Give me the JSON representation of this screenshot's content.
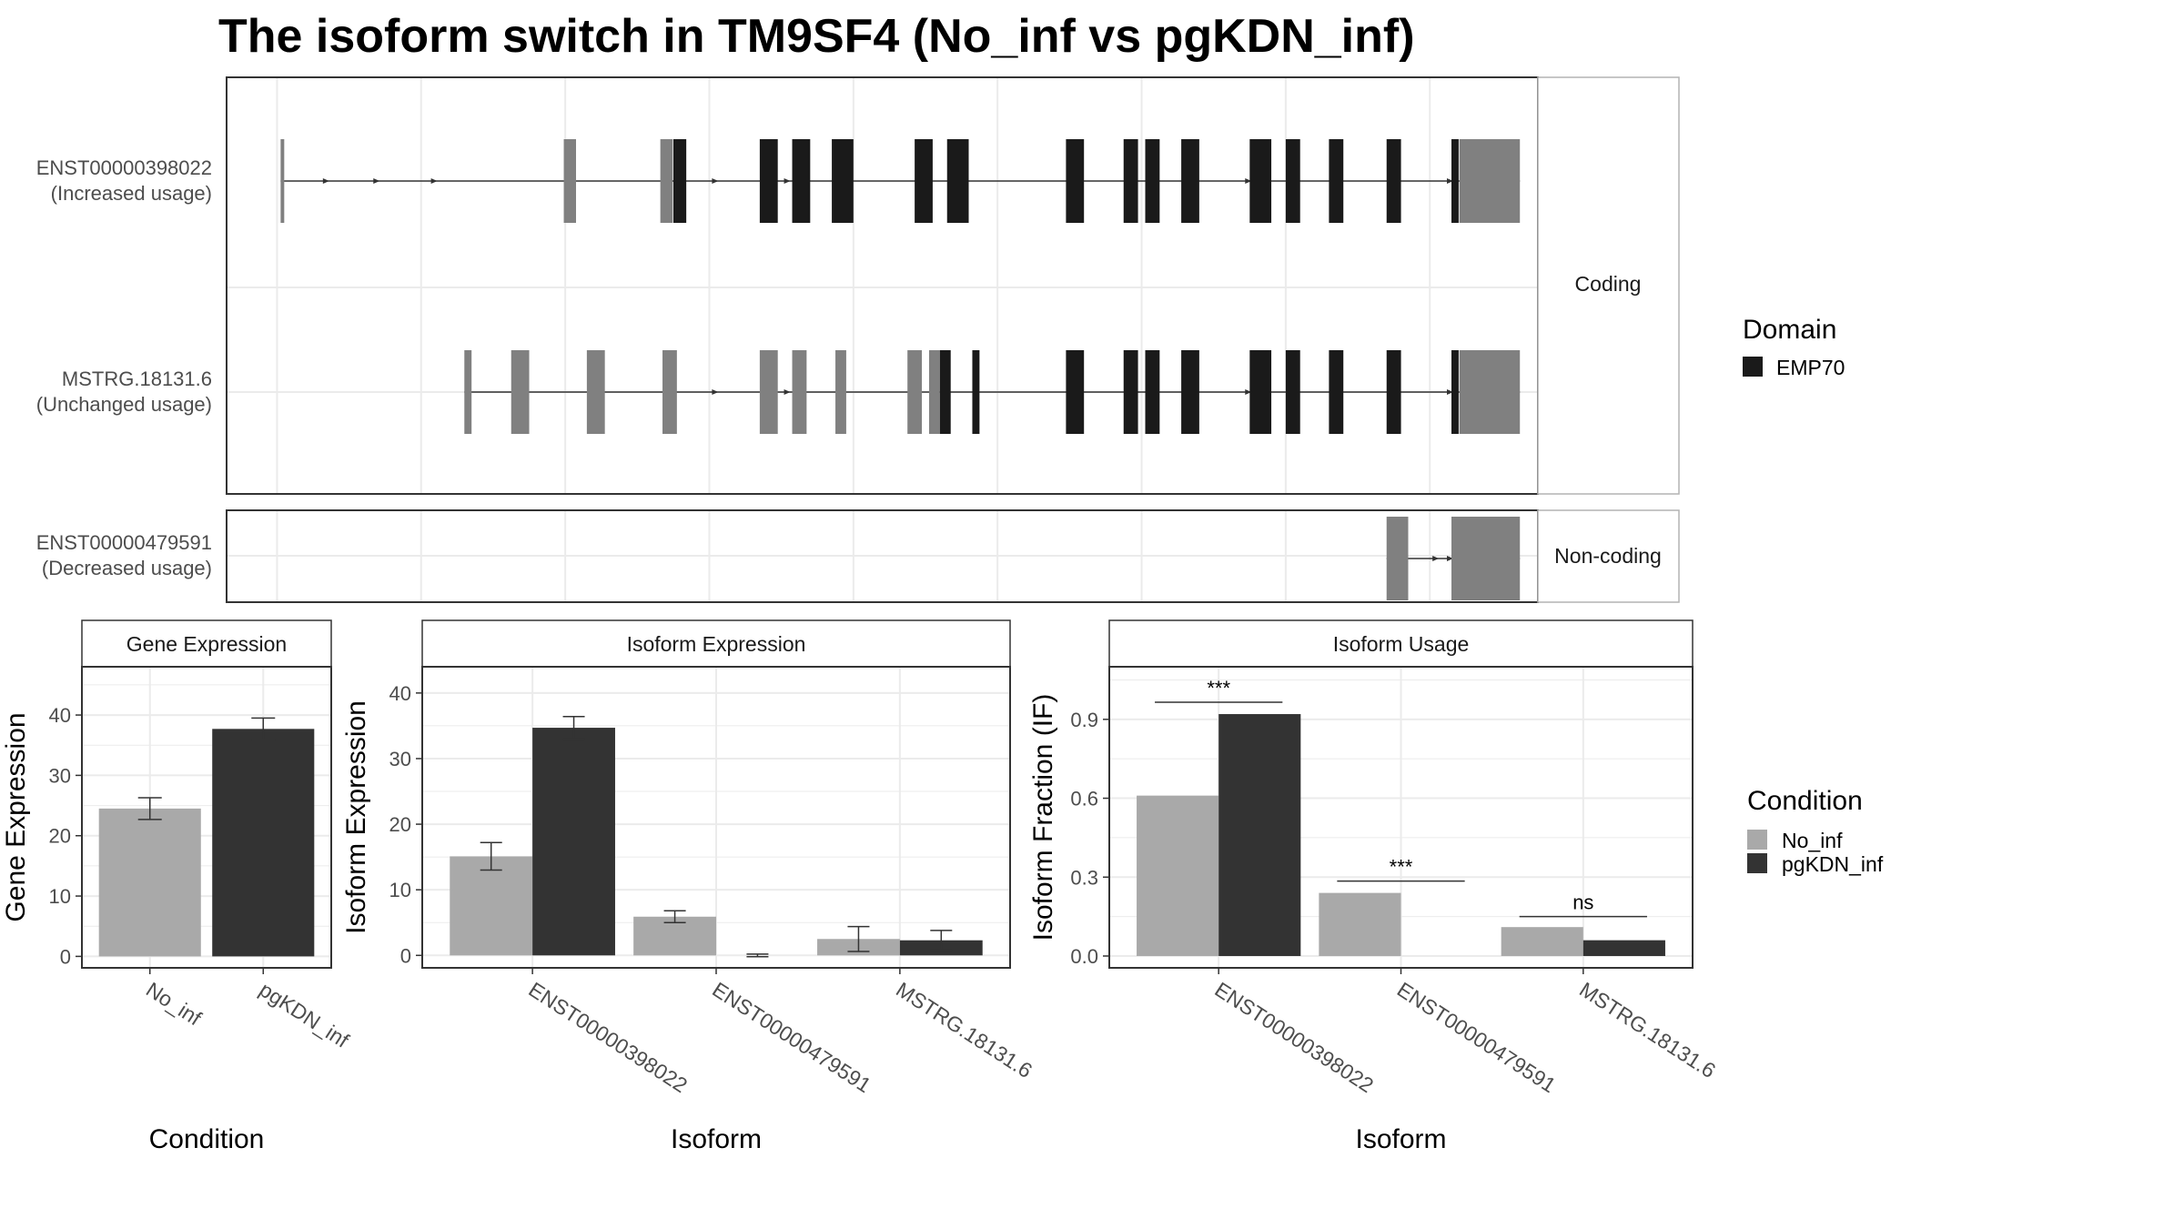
{
  "title": "The isoform switch in TM9SF4 (No_inf vs pgKDN_inf)",
  "colors": {
    "no_inf": "#a9a9a9",
    "pgkdn_inf": "#333333",
    "domain": "#1a1a1a",
    "utr_or_noncoding": "#808080",
    "panel_border": "#333333",
    "strip_border": "#b3b3b3",
    "grid": "#ebebeb"
  },
  "structure": {
    "facets": [
      "Coding",
      "Non-coding"
    ],
    "domain_legend": {
      "title": "Domain",
      "items": [
        {
          "label": "EMP70",
          "color": "#1a1a1a"
        }
      ]
    },
    "transcripts": [
      {
        "id": "ENST00000398022",
        "usage": "(Increased usage)",
        "facet": "Coding",
        "exons": [
          [
            0.5,
            1.0,
            "utr"
          ],
          [
            39.8,
            41.5,
            "utr"
          ],
          [
            53.2,
            54.9,
            "utr"
          ],
          [
            55.0,
            56.8,
            "domain"
          ],
          [
            67.0,
            69.5,
            "domain"
          ],
          [
            71.5,
            74.0,
            "domain"
          ],
          [
            77.0,
            80.0,
            "domain"
          ],
          [
            88.5,
            91.0,
            "domain"
          ],
          [
            93.0,
            96.0,
            "domain"
          ],
          [
            109.5,
            112.0,
            "domain"
          ],
          [
            117.5,
            119.5,
            "domain"
          ],
          [
            120.5,
            122.5,
            "domain"
          ],
          [
            125.5,
            128.0,
            "domain"
          ],
          [
            135.0,
            138.0,
            "domain"
          ],
          [
            140.0,
            142.0,
            "domain"
          ],
          [
            146.0,
            148.0,
            "domain"
          ],
          [
            154.0,
            156.0,
            "domain"
          ],
          [
            163.0,
            164.0,
            "domain"
          ],
          [
            164.1,
            172.5,
            "utr"
          ]
        ],
        "arrows": [
          7,
          14,
          22,
          61,
          71,
          135,
          163
        ]
      },
      {
        "id": "MSTRG.18131.6",
        "usage": "(Unchanged usage)",
        "facet": "Coding",
        "exons": [
          [
            26.0,
            27.0,
            "utr"
          ],
          [
            32.5,
            35.0,
            "utr"
          ],
          [
            43.0,
            45.5,
            "utr"
          ],
          [
            53.5,
            55.5,
            "utr"
          ],
          [
            67.0,
            69.5,
            "utr"
          ],
          [
            71.5,
            73.5,
            "utr"
          ],
          [
            77.5,
            79.0,
            "utr"
          ],
          [
            87.5,
            89.5,
            "utr"
          ],
          [
            90.5,
            92.0,
            "utr"
          ],
          [
            92.0,
            93.5,
            "domain"
          ],
          [
            96.5,
            97.5,
            "domain"
          ],
          [
            109.5,
            112.0,
            "domain"
          ],
          [
            117.5,
            119.5,
            "domain"
          ],
          [
            120.5,
            122.5,
            "domain"
          ],
          [
            125.5,
            128.0,
            "domain"
          ],
          [
            135.0,
            138.0,
            "domain"
          ],
          [
            140.0,
            142.0,
            "domain"
          ],
          [
            146.0,
            148.0,
            "domain"
          ],
          [
            154.0,
            156.0,
            "domain"
          ],
          [
            163.0,
            164.0,
            "domain"
          ],
          [
            164.1,
            172.5,
            "utr"
          ]
        ],
        "arrows": [
          61,
          71,
          135,
          163
        ]
      },
      {
        "id": "ENST00000479591",
        "usage": "(Decreased usage)",
        "facet": "Non-coding",
        "exons": [
          [
            154.0,
            157.0,
            "utr"
          ],
          [
            163.0,
            172.5,
            "utr"
          ]
        ],
        "arrows": [
          161,
          163
        ]
      }
    ]
  },
  "chart_data": [
    {
      "type": "bar",
      "strip": "Gene Expression",
      "xlabel": "Condition",
      "ylabel": "Gene Expression",
      "categories": [
        "No_inf",
        "pgKDN_inf"
      ],
      "values": [
        24.5,
        37.7
      ],
      "errors": [
        [
          22.7,
          26.3
        ],
        [
          35.9,
          39.5
        ]
      ],
      "colors": [
        "#a9a9a9",
        "#333333"
      ],
      "ylim": [
        -1.9,
        48
      ],
      "yticks": [
        0,
        10,
        20,
        30,
        40
      ],
      "grid": true
    },
    {
      "type": "bar",
      "strip": "Isoform Expression",
      "xlabel": "Isoform",
      "ylabel": "Isoform Expression",
      "categories": [
        "ENST00000398022",
        "ENST00000479591",
        "MSTRG.18131.6"
      ],
      "series": [
        {
          "name": "No_inf",
          "values": [
            15.1,
            5.9,
            2.5
          ],
          "errors": [
            [
              13.0,
              17.2
            ],
            [
              5.0,
              6.8
            ],
            [
              0.6,
              4.4
            ]
          ]
        },
        {
          "name": "pgKDN_inf",
          "values": [
            34.7,
            0.0,
            2.3
          ],
          "errors": [
            [
              33.0,
              36.4
            ],
            [
              -0.2,
              0.2
            ],
            [
              0.8,
              3.8
            ]
          ]
        }
      ],
      "ylim": [
        -1.9,
        44
      ],
      "yticks": [
        0,
        10,
        20,
        30,
        40
      ],
      "grid": true
    },
    {
      "type": "bar",
      "strip": "Isoform Usage",
      "xlabel": "Isoform",
      "ylabel": "Isoform Fraction (IF)",
      "categories": [
        "ENST00000398022",
        "ENST00000479591",
        "MSTRG.18131.6"
      ],
      "series": [
        {
          "name": "No_inf",
          "values": [
            0.61,
            0.24,
            0.11
          ]
        },
        {
          "name": "pgKDN_inf",
          "values": [
            0.92,
            0.0,
            0.06
          ]
        }
      ],
      "significance": [
        "***",
        "***",
        "ns"
      ],
      "significance_level": [
        0.965,
        0.285,
        0.15
      ],
      "ylim": [
        -0.045,
        1.1
      ],
      "yticks": [
        0.0,
        0.3,
        0.6,
        0.9
      ],
      "ytick_labels": [
        "0.0",
        "0.3",
        "0.6",
        "0.9"
      ],
      "grid": true
    }
  ],
  "condition_legend": {
    "title": "Condition",
    "items": [
      {
        "label": "No_inf",
        "color": "#a9a9a9"
      },
      {
        "label": "pgKDN_inf",
        "color": "#333333"
      }
    ]
  }
}
